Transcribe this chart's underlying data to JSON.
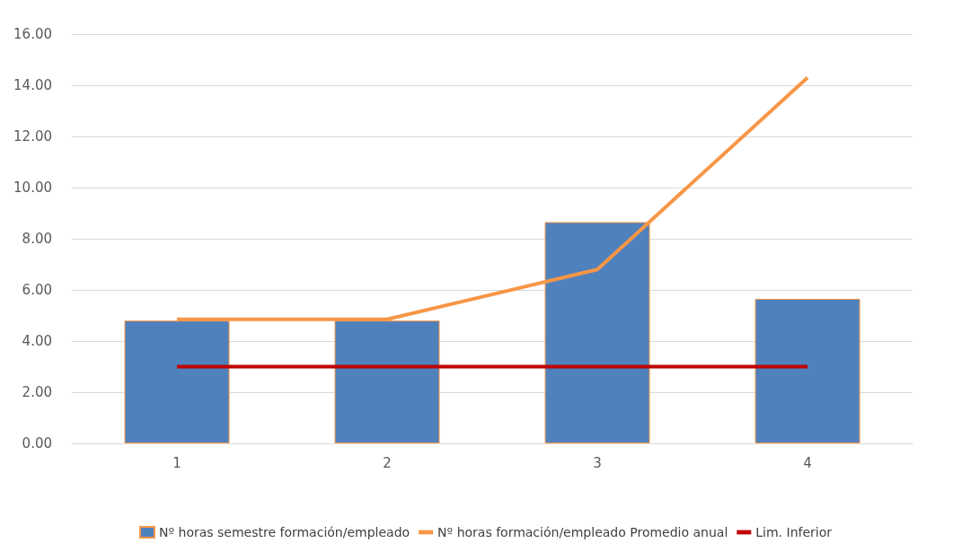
{
  "chart_data": {
    "type": "bar",
    "categories": [
      "1",
      "2",
      "3",
      "4"
    ],
    "series": [
      {
        "name": "Nº horas semestre formación/empleado",
        "color": "#4f81bd",
        "values": [
          4.8,
          4.8,
          8.65,
          5.65
        ]
      },
      {
        "name": "Nº horas formación/empleado Promedio anual",
        "type": "line",
        "color": "#f79646",
        "values": [
          4.85,
          4.85,
          6.8,
          14.3
        ]
      },
      {
        "name": "Lim. Inferior",
        "type": "line",
        "color": "#c00000",
        "values": [
          3,
          3,
          3,
          3
        ]
      }
    ],
    "ylim": [
      0,
      16
    ],
    "yticks": [
      {
        "value": 0,
        "label": "0.00"
      },
      {
        "value": 2,
        "label": "2.00"
      },
      {
        "value": 4,
        "label": "4.00"
      },
      {
        "value": 6,
        "label": "6.00"
      },
      {
        "value": 8,
        "label": "8.00"
      },
      {
        "value": 10,
        "label": "10.00"
      },
      {
        "value": 12,
        "label": "12.00"
      },
      {
        "value": 14,
        "label": "14.00"
      },
      {
        "value": 16,
        "label": "16.00"
      }
    ],
    "grid": "y",
    "legend": "bottom",
    "marker": "none"
  }
}
